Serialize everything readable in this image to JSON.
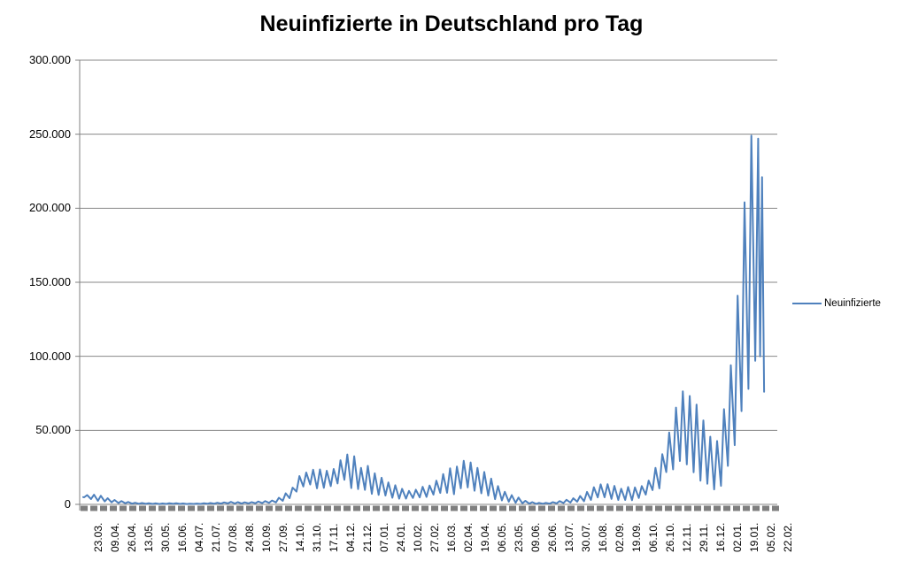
{
  "title": "Neuinfizierte in Deutschland pro Tag",
  "legend": {
    "label": "Neuinfizierte"
  },
  "colors": {
    "line": "#4F81BD",
    "gridline": "#878787",
    "axis": "#808080",
    "tick_band": "#7F7F7F",
    "text": "#000000",
    "background": "#FFFFFF"
  },
  "chart_data": {
    "type": "line",
    "title": "Neuinfizierte in Deutschland pro Tag",
    "legend_entries": [
      "Neuinfizierte"
    ],
    "legend_position": "right",
    "grid": true,
    "ylim": [
      0,
      300000
    ],
    "y_tick_step": 50000,
    "y_tick_labels": [
      "300.000",
      "250.000",
      "200.000",
      "150.000",
      "100.000",
      "50.000",
      "0"
    ],
    "x_tick_labels": [
      "23.03.",
      "09.04.",
      "26.04.",
      "13.05.",
      "30.05.",
      "16.06.",
      "04.07.",
      "21.07.",
      "07.08.",
      "24.08.",
      "10.09.",
      "27.09.",
      "14.10.",
      "31.10.",
      "17.11.",
      "04.12.",
      "21.12.",
      "07.01.",
      "24.01.",
      "10.02.",
      "27.02.",
      "16.03.",
      "02.04.",
      "19.04.",
      "06.05.",
      "23.05.",
      "09.06.",
      "26.06.",
      "13.07.",
      "30.07.",
      "16.08.",
      "02.09.",
      "19.09.",
      "06.10.",
      "26.10.",
      "12.11.",
      "29.11.",
      "16.12.",
      "02.01.",
      "19.01.",
      "05.02.",
      "22.02."
    ],
    "x_start_label": "23.03.",
    "x_end_label": "22.02.",
    "x_total_days": 705,
    "series": [
      {
        "name": "Neuinfizierte",
        "x_unit": "days_since_first_point",
        "points": [
          [
            0,
            4900
          ],
          [
            1,
            4800
          ],
          [
            4,
            6300
          ],
          [
            8,
            3600
          ],
          [
            11,
            6500
          ],
          [
            15,
            2400
          ],
          [
            18,
            5800
          ],
          [
            22,
            2000
          ],
          [
            25,
            4200
          ],
          [
            29,
            1400
          ],
          [
            32,
            3000
          ],
          [
            36,
            900
          ],
          [
            39,
            2200
          ],
          [
            43,
            700
          ],
          [
            46,
            1600
          ],
          [
            50,
            500
          ],
          [
            53,
            1100
          ],
          [
            57,
            400
          ],
          [
            60,
            900
          ],
          [
            64,
            350
          ],
          [
            67,
            800
          ],
          [
            71,
            300
          ],
          [
            74,
            700
          ],
          [
            78,
            250
          ],
          [
            81,
            600
          ],
          [
            85,
            300
          ],
          [
            88,
            750
          ],
          [
            92,
            350
          ],
          [
            95,
            800
          ],
          [
            99,
            300
          ],
          [
            102,
            600
          ],
          [
            106,
            250
          ],
          [
            109,
            500
          ],
          [
            113,
            280
          ],
          [
            116,
            550
          ],
          [
            120,
            320
          ],
          [
            123,
            700
          ],
          [
            127,
            400
          ],
          [
            130,
            900
          ],
          [
            134,
            500
          ],
          [
            137,
            1100
          ],
          [
            141,
            550
          ],
          [
            144,
            1300
          ],
          [
            148,
            650
          ],
          [
            151,
            1700
          ],
          [
            155,
            600
          ],
          [
            158,
            1500
          ],
          [
            162,
            550
          ],
          [
            165,
            1350
          ],
          [
            169,
            650
          ],
          [
            172,
            1500
          ],
          [
            176,
            750
          ],
          [
            179,
            1900
          ],
          [
            183,
            850
          ],
          [
            186,
            2200
          ],
          [
            190,
            1000
          ],
          [
            193,
            2600
          ],
          [
            197,
            1300
          ],
          [
            200,
            4500
          ],
          [
            204,
            2400
          ],
          [
            207,
            7500
          ],
          [
            211,
            4200
          ],
          [
            214,
            11300
          ],
          [
            218,
            8600
          ],
          [
            221,
            19100
          ],
          [
            225,
            12100
          ],
          [
            228,
            21500
          ],
          [
            232,
            13400
          ],
          [
            235,
            23400
          ],
          [
            239,
            10800
          ],
          [
            242,
            23600
          ],
          [
            246,
            11200
          ],
          [
            249,
            22700
          ],
          [
            253,
            12300
          ],
          [
            256,
            23900
          ],
          [
            260,
            14100
          ],
          [
            263,
            29800
          ],
          [
            267,
            16600
          ],
          [
            270,
            33700
          ],
          [
            274,
            11000
          ],
          [
            277,
            32500
          ],
          [
            281,
            10300
          ],
          [
            284,
            24700
          ],
          [
            288,
            9800
          ],
          [
            291,
            26000
          ],
          [
            295,
            7100
          ],
          [
            298,
            21000
          ],
          [
            302,
            6400
          ],
          [
            305,
            18000
          ],
          [
            309,
            6000
          ],
          [
            312,
            14800
          ],
          [
            316,
            4500
          ],
          [
            319,
            12900
          ],
          [
            323,
            3800
          ],
          [
            326,
            10500
          ],
          [
            330,
            3900
          ],
          [
            333,
            9100
          ],
          [
            337,
            4300
          ],
          [
            340,
            9900
          ],
          [
            344,
            4700
          ],
          [
            347,
            11900
          ],
          [
            351,
            5000
          ],
          [
            354,
            12700
          ],
          [
            358,
            6600
          ],
          [
            361,
            16000
          ],
          [
            365,
            7700
          ],
          [
            368,
            20500
          ],
          [
            372,
            7800
          ],
          [
            375,
            24300
          ],
          [
            379,
            6900
          ],
          [
            382,
            25500
          ],
          [
            386,
            10800
          ],
          [
            389,
            29400
          ],
          [
            393,
            11400
          ],
          [
            396,
            28300
          ],
          [
            400,
            9200
          ],
          [
            403,
            24700
          ],
          [
            407,
            7500
          ],
          [
            410,
            21900
          ],
          [
            414,
            5900
          ],
          [
            417,
            17400
          ],
          [
            421,
            3500
          ],
          [
            424,
            12400
          ],
          [
            428,
            2700
          ],
          [
            431,
            8500
          ],
          [
            435,
            1800
          ],
          [
            438,
            6200
          ],
          [
            442,
            1100
          ],
          [
            445,
            4600
          ],
          [
            449,
            700
          ],
          [
            452,
            2400
          ],
          [
            456,
            450
          ],
          [
            459,
            1500
          ],
          [
            463,
            350
          ],
          [
            466,
            1000
          ],
          [
            470,
            400
          ],
          [
            473,
            1000
          ],
          [
            477,
            500
          ],
          [
            480,
            1500
          ],
          [
            484,
            700
          ],
          [
            487,
            2200
          ],
          [
            491,
            900
          ],
          [
            494,
            3100
          ],
          [
            498,
            1200
          ],
          [
            501,
            4100
          ],
          [
            505,
            1800
          ],
          [
            508,
            5700
          ],
          [
            512,
            2100
          ],
          [
            515,
            8400
          ],
          [
            519,
            3000
          ],
          [
            522,
            11600
          ],
          [
            526,
            4700
          ],
          [
            529,
            13500
          ],
          [
            533,
            4800
          ],
          [
            536,
            13600
          ],
          [
            540,
            3700
          ],
          [
            543,
            12500
          ],
          [
            547,
            3000
          ],
          [
            550,
            10600
          ],
          [
            554,
            3000
          ],
          [
            557,
            11700
          ],
          [
            561,
            2800
          ],
          [
            564,
            11500
          ],
          [
            568,
            4300
          ],
          [
            571,
            12400
          ],
          [
            575,
            6600
          ],
          [
            578,
            16100
          ],
          [
            582,
            9600
          ],
          [
            585,
            24700
          ],
          [
            589,
            10800
          ],
          [
            592,
            33900
          ],
          [
            596,
            21800
          ],
          [
            599,
            48600
          ],
          [
            603,
            23600
          ],
          [
            606,
            65400
          ],
          [
            610,
            29300
          ],
          [
            613,
            76400
          ],
          [
            617,
            27000
          ],
          [
            620,
            73200
          ],
          [
            624,
            21700
          ],
          [
            627,
            67400
          ],
          [
            631,
            16000
          ],
          [
            634,
            56700
          ],
          [
            638,
            13900
          ],
          [
            641,
            45700
          ],
          [
            645,
            10100
          ],
          [
            648,
            42800
          ],
          [
            652,
            12500
          ],
          [
            655,
            64300
          ],
          [
            659,
            26000
          ],
          [
            662,
            94000
          ],
          [
            666,
            40000
          ],
          [
            669,
            141000
          ],
          [
            673,
            63000
          ],
          [
            676,
            204000
          ],
          [
            680,
            78000
          ],
          [
            683,
            249000
          ],
          [
            687,
            97000
          ],
          [
            690,
            247000
          ],
          [
            692,
            100000
          ],
          [
            694,
            221000
          ],
          [
            696,
            76000
          ]
        ]
      }
    ]
  }
}
